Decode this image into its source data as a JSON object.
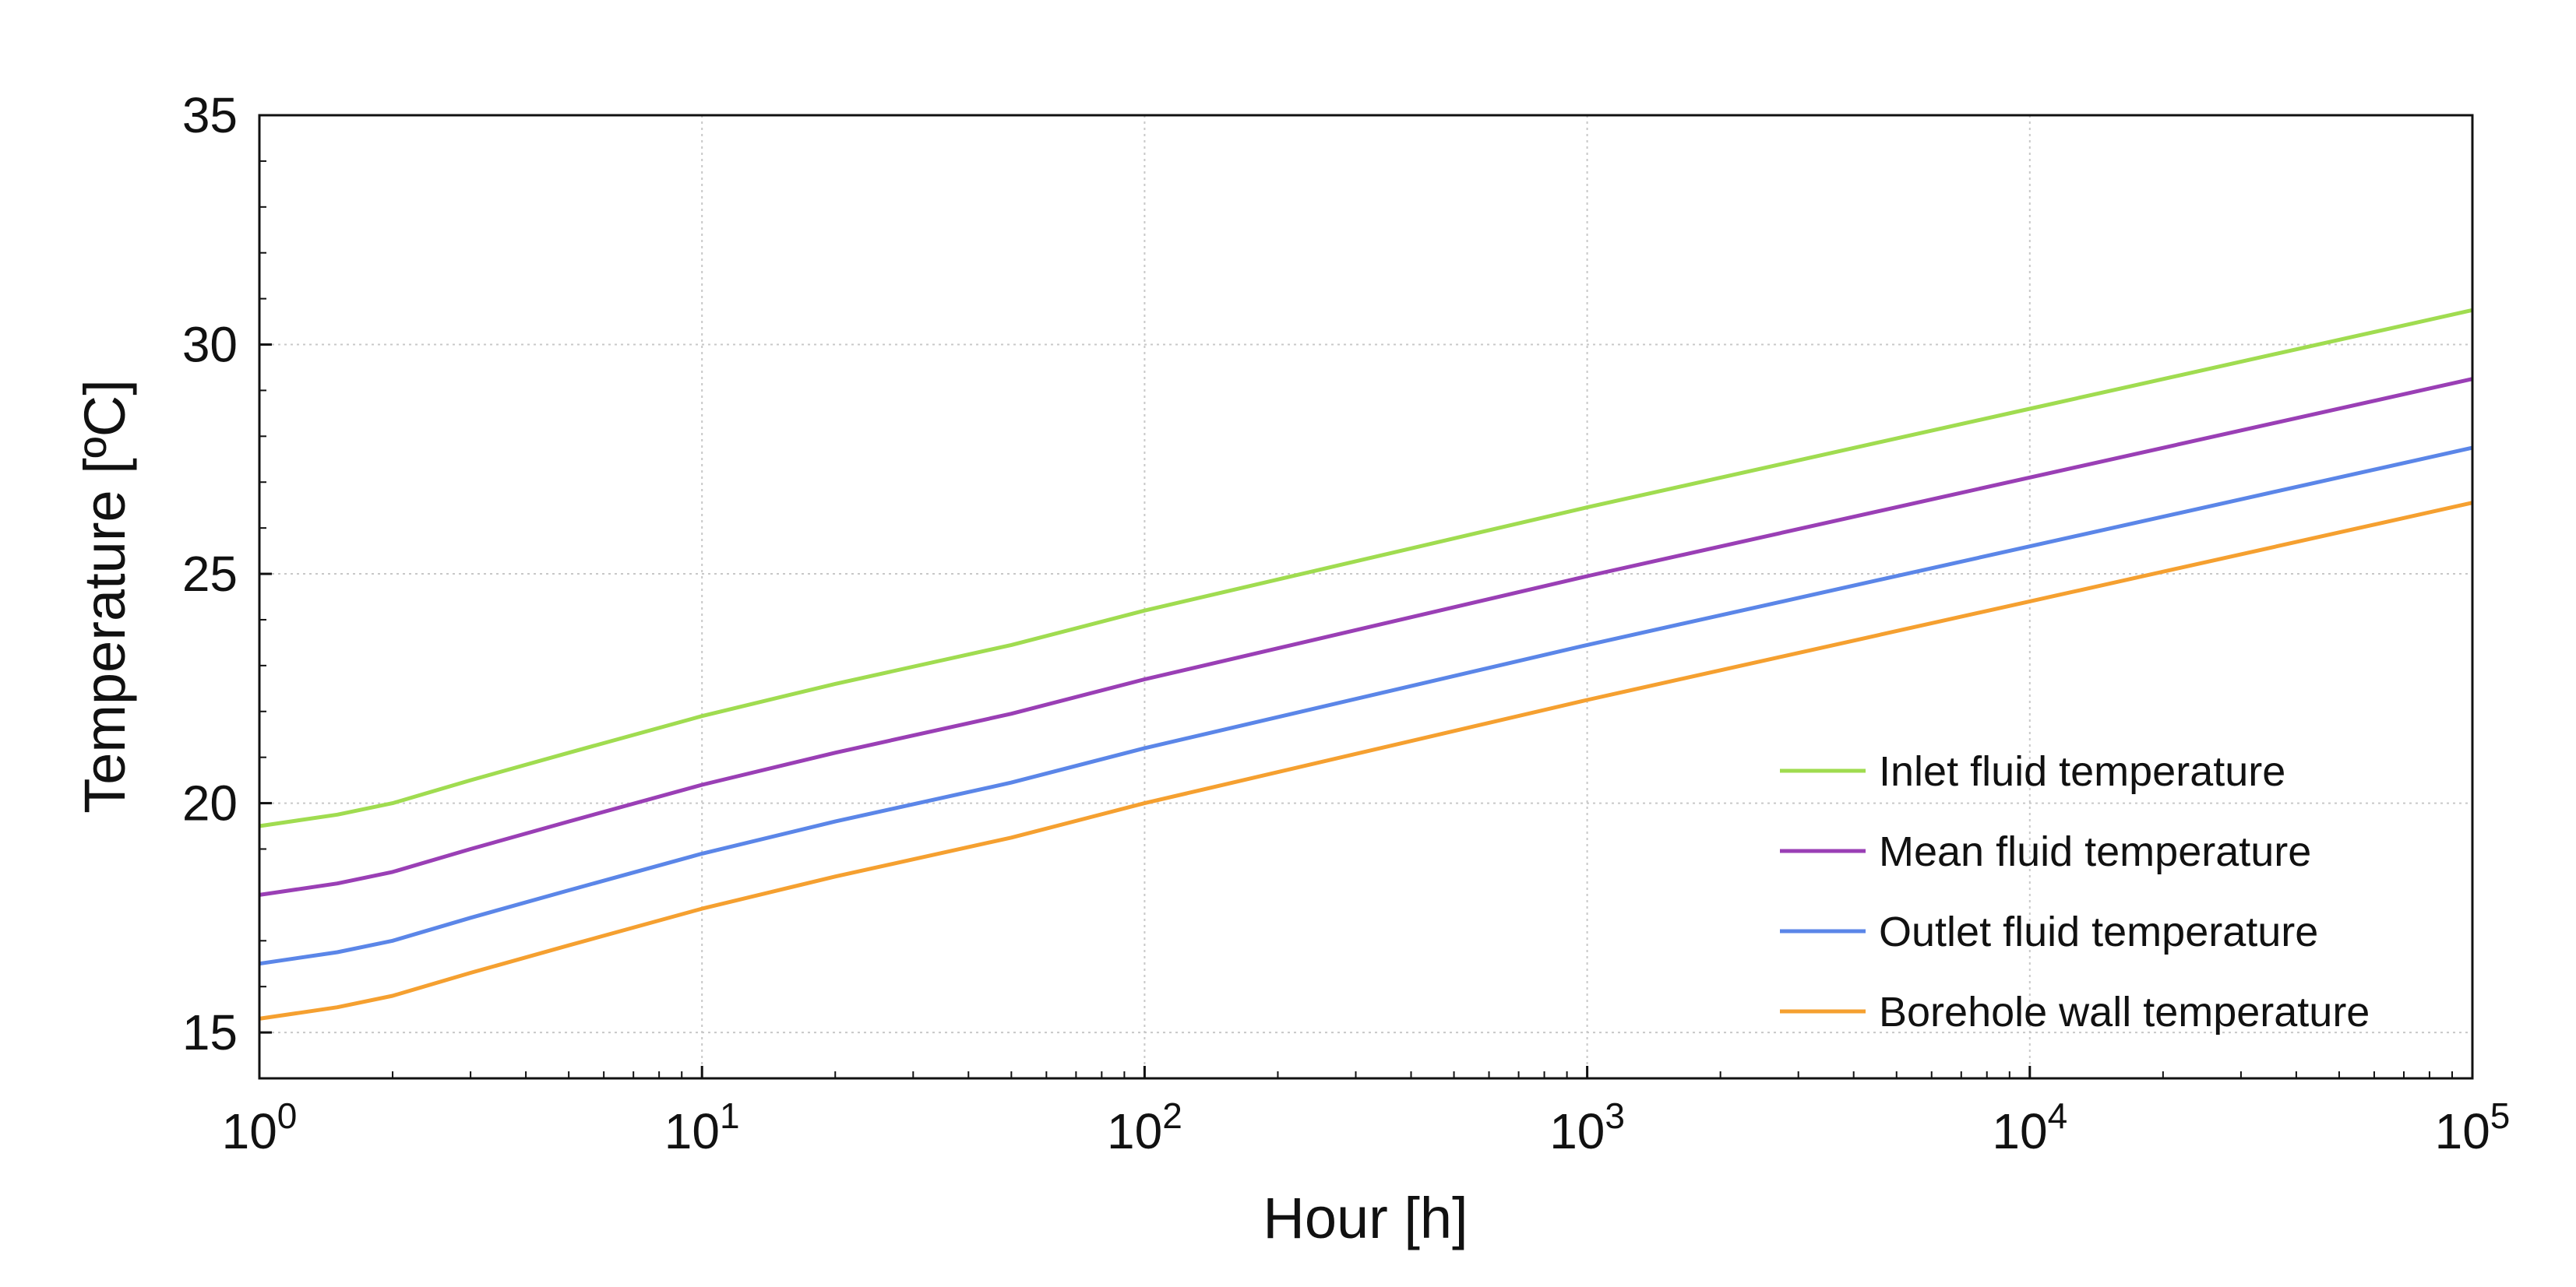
{
  "chart_data": {
    "type": "line",
    "title": "",
    "xlabel": "Hour [h]",
    "ylabel": "Temperature [ºC]",
    "xscale": "log",
    "xlim": [
      1,
      100000
    ],
    "ylim": [
      14,
      35
    ],
    "grid": true,
    "legend_position": "lower-right",
    "x_tick_labels": [
      {
        "base": "10",
        "exp": "0"
      },
      {
        "base": "10",
        "exp": "1"
      },
      {
        "base": "10",
        "exp": "2"
      },
      {
        "base": "10",
        "exp": "3"
      },
      {
        "base": "10",
        "exp": "4"
      },
      {
        "base": "10",
        "exp": "5"
      }
    ],
    "y_ticks": [
      15,
      20,
      25,
      30,
      35
    ],
    "x": [
      1,
      1.5,
      2,
      3,
      5,
      10,
      20,
      50,
      100,
      1000,
      10000,
      100000
    ],
    "series": [
      {
        "name": "Inlet fluid temperature",
        "color": "#a0dc50",
        "values": [
          19.5,
          19.75,
          20.0,
          20.5,
          21.1,
          21.9,
          22.6,
          23.45,
          24.2,
          26.45,
          28.6,
          30.75
        ]
      },
      {
        "name": "Mean fluid temperature",
        "color": "#9a3fb5",
        "values": [
          18.0,
          18.25,
          18.5,
          19.0,
          19.6,
          20.4,
          21.1,
          21.95,
          22.7,
          24.95,
          27.1,
          29.25
        ]
      },
      {
        "name": "Outlet fluid temperature",
        "color": "#5b86e8",
        "values": [
          16.5,
          16.75,
          17.0,
          17.5,
          18.1,
          18.9,
          19.6,
          20.45,
          21.2,
          23.45,
          25.6,
          27.75
        ]
      },
      {
        "name": "Borehole wall temperature",
        "color": "#f5a030",
        "values": [
          15.3,
          15.55,
          15.8,
          16.3,
          16.9,
          17.7,
          18.4,
          19.25,
          20.0,
          22.25,
          24.4,
          26.55
        ]
      }
    ]
  }
}
